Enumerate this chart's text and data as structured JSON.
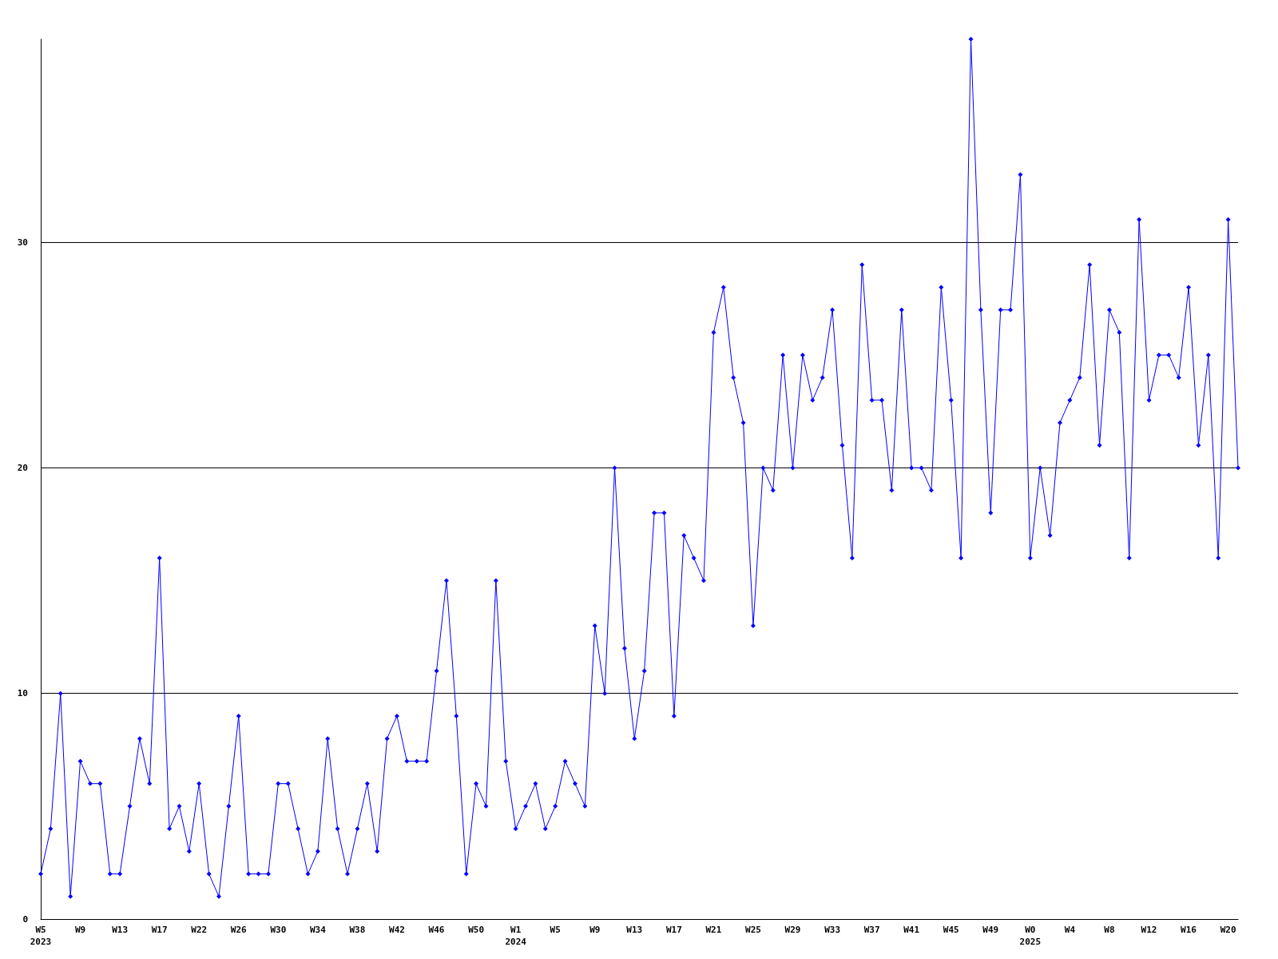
{
  "chart_data": {
    "type": "line",
    "categories": [
      "W5\n2023",
      null,
      null,
      null,
      "W9",
      null,
      null,
      null,
      "W13",
      null,
      null,
      null,
      "W17",
      null,
      null,
      null,
      "W22",
      null,
      null,
      null,
      "W26",
      null,
      null,
      null,
      "W30",
      null,
      null,
      null,
      "W34",
      null,
      null,
      null,
      "W38",
      null,
      null,
      null,
      "W42",
      null,
      null,
      null,
      "W46",
      null,
      null,
      null,
      "W50",
      null,
      null,
      null,
      "W1\n2024",
      null,
      null,
      null,
      "W5",
      null,
      null,
      null,
      "W9",
      null,
      null,
      null,
      "W13",
      null,
      null,
      null,
      "W17",
      null,
      null,
      null,
      "W21",
      null,
      null,
      null,
      "W25",
      null,
      null,
      null,
      "W29",
      null,
      null,
      null,
      "W33",
      null,
      null,
      null,
      "W37",
      null,
      null,
      null,
      "W41",
      null,
      null,
      null,
      "W45",
      null,
      null,
      null,
      "W49",
      null,
      null,
      null,
      "W0\n2025",
      null,
      null,
      null,
      "W4",
      null,
      null,
      null,
      "W8",
      null,
      null,
      null,
      "W12",
      null,
      null,
      null,
      "W16",
      null,
      null,
      null,
      "W20",
      null
    ],
    "values": [
      2,
      4,
      10,
      1,
      7,
      6,
      6,
      2,
      2,
      5,
      8,
      6,
      16,
      4,
      5,
      3,
      6,
      2,
      1,
      5,
      9,
      2,
      2,
      2,
      6,
      6,
      4,
      2,
      3,
      8,
      4,
      2,
      4,
      6,
      3,
      8,
      9,
      7,
      7,
      7,
      11,
      15,
      9,
      2,
      6,
      5,
      15,
      7,
      4,
      5,
      6,
      4,
      5,
      7,
      6,
      5,
      13,
      10,
      20,
      12,
      8,
      11,
      18,
      18,
      9,
      17,
      16,
      15,
      26,
      28,
      24,
      22,
      13,
      20,
      19,
      25,
      20,
      25,
      23,
      24,
      27,
      21,
      16,
      29,
      23,
      23,
      19,
      27,
      20,
      20,
      19,
      28,
      23,
      16,
      39,
      27,
      18,
      27,
      27,
      33,
      16,
      20,
      17,
      22,
      23,
      24,
      29,
      21,
      27,
      26,
      16,
      31,
      23,
      25,
      25,
      24,
      28,
      21,
      25,
      16,
      31,
      20
    ],
    "color": "#0000ff",
    "ylim": [
      0,
      39
    ],
    "yticks": [
      0,
      10,
      20,
      30
    ],
    "grid": "y",
    "marker": "diamond",
    "line_style": "solid"
  }
}
